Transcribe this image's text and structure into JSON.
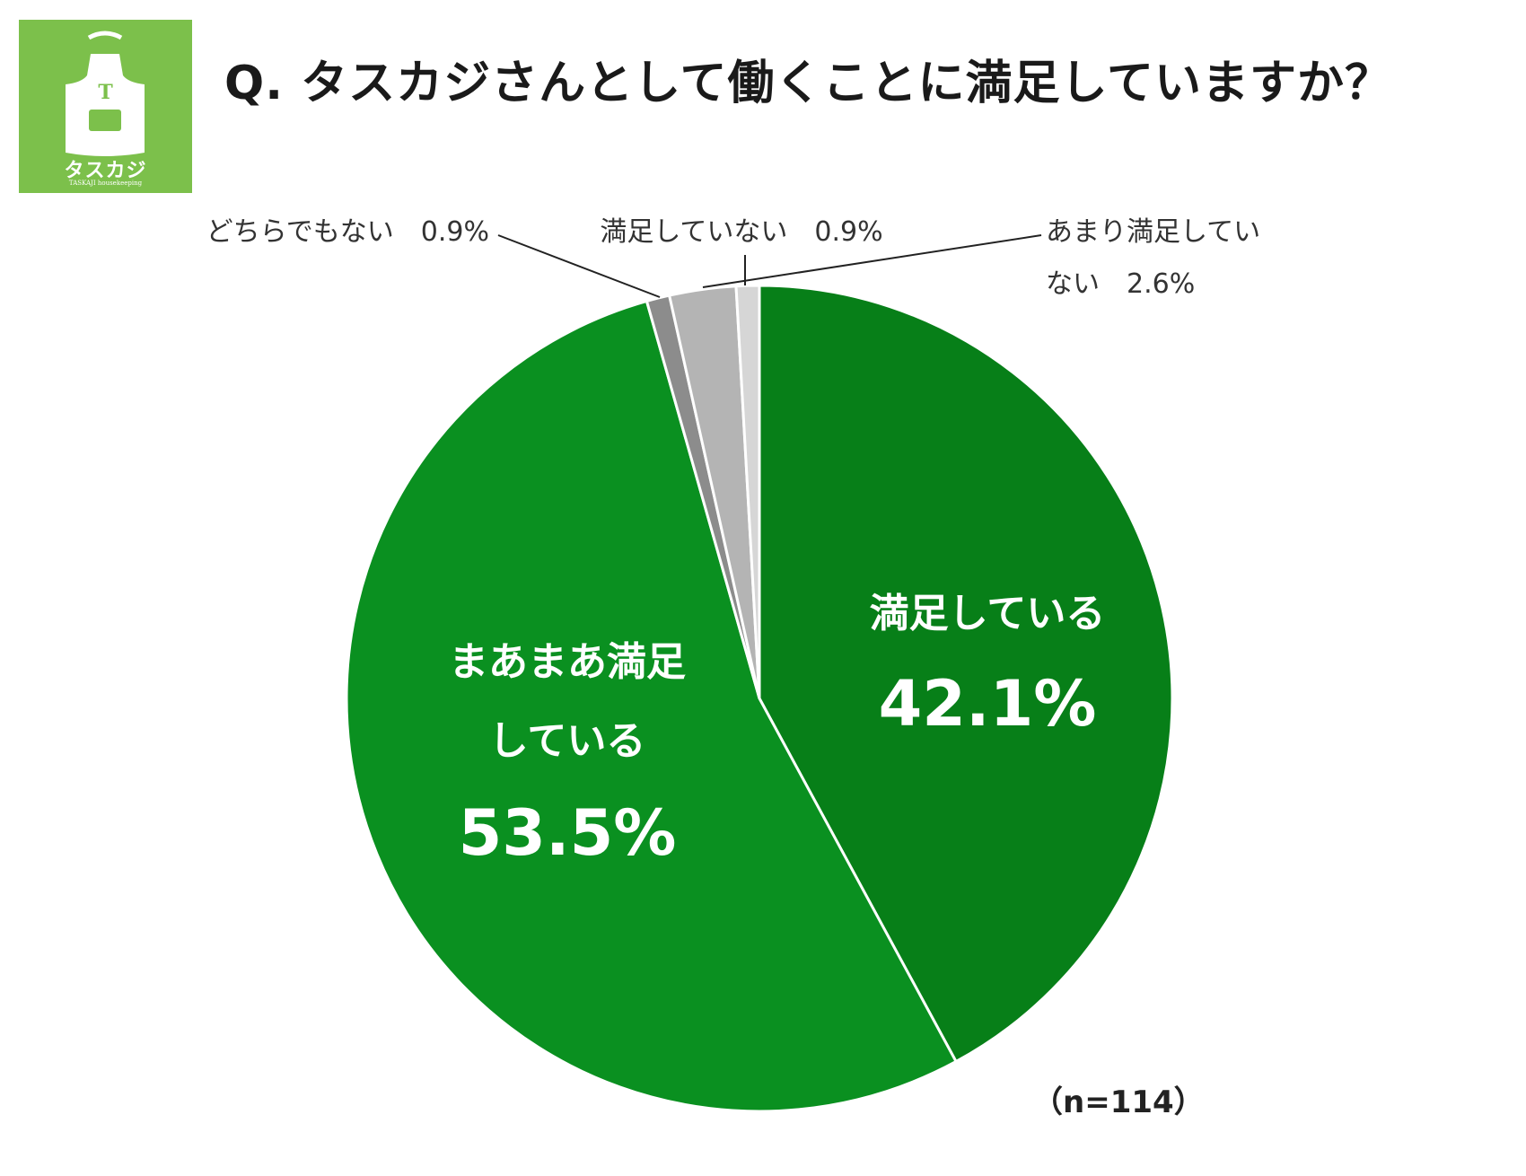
{
  "title": "Q. タスカジさんとして働くことに満足していますか？",
  "logo": {
    "letter": "T",
    "name": "タスカジ",
    "tagline": "TASKAJI housekeeping"
  },
  "sample_size": "（n=114）",
  "colors": {
    "logo_bg": "#7cc04b",
    "satisfied": "#077f18",
    "somewhat_satisfied": "#0a9020",
    "neutral": "#8c8c8c",
    "not_very_satisfied": "#b4b4b4",
    "not_satisfied": "#d6d6d6"
  },
  "chart_data": {
    "type": "pie",
    "title": "Q. タスカジさんとして働くことに満足していますか？",
    "sample_size": 114,
    "slices": [
      {
        "label": "満足している",
        "label_lines": [
          "満足している"
        ],
        "value": 42.1,
        "value_label": "42.1%",
        "color": "#077f18",
        "label_placement": "inside"
      },
      {
        "label": "まあまあ満足している",
        "label_lines": [
          "まあまあ満足",
          "している"
        ],
        "value": 53.5,
        "value_label": "53.5%",
        "color": "#0a9020",
        "label_placement": "inside"
      },
      {
        "label": "どちらでもない",
        "label_lines": [
          "どちらでもない　0.9%"
        ],
        "value": 0.9,
        "value_label": "0.9%",
        "color": "#8c8c8c",
        "label_placement": "outside"
      },
      {
        "label": "あまり満足していない",
        "label_lines": [
          "あまり満足してい",
          "ない　2.6%"
        ],
        "value": 2.6,
        "value_label": "2.6%",
        "color": "#b4b4b4",
        "label_placement": "outside"
      },
      {
        "label": "満足していない",
        "label_lines": [
          "満足していない　0.9%"
        ],
        "value": 0.9,
        "value_label": "0.9%",
        "color": "#d6d6d6",
        "label_placement": "outside"
      }
    ]
  }
}
